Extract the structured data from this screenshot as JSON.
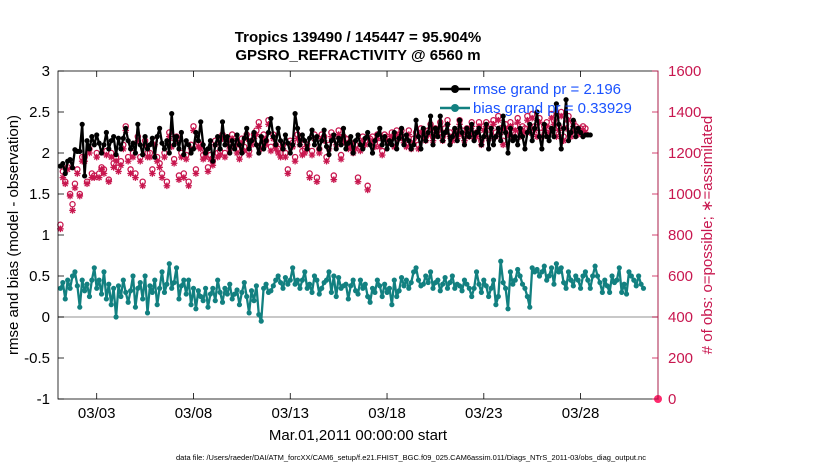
{
  "chart_data": {
    "type": "line",
    "title_line1": "Tropics 139490 / 145447 = 95.904%",
    "title_line2": "GPSRO_REFRACTIVITY @ 6560 m",
    "ylabel_left": "rmse and bias (model - observation)",
    "ylabel_right": "# of obs: o=possible; ∗=assimilated",
    "xlabel": "Mar.01,2011 00:00:00 start",
    "footnote": "data file: /Users/raeder/DAI/ATM_forcXX/CAM6_setup/f.e21.FHIST_BGC.f09_025.CAM6assim.011/Diags_NTrS_2011-03/obs_diag_output.nc",
    "xlim": [
      0,
      31
    ],
    "ylim_left": [
      -1,
      3
    ],
    "ylim_right": [
      0,
      1600
    ],
    "x_ticks": [
      2,
      7,
      12,
      17,
      22,
      27
    ],
    "x_tick_labels": [
      "03/03",
      "03/08",
      "03/13",
      "03/18",
      "03/23",
      "03/28"
    ],
    "y_left_ticks": [
      -1,
      -0.5,
      0,
      0.5,
      1,
      1.5,
      2,
      2.5,
      3
    ],
    "y_left_tick_labels": [
      "-1",
      "-0.5",
      "0",
      "0.5",
      "1",
      "1.5",
      "2",
      "2.5",
      "3"
    ],
    "y_right_ticks": [
      0,
      200,
      400,
      600,
      800,
      1000,
      1200,
      1400,
      1600
    ],
    "y_right_tick_labels": [
      "0",
      "200",
      "400",
      "600",
      "800",
      "1000",
      "1200",
      "1400",
      "1600"
    ],
    "x_step_days": 0.125,
    "x_start": 0.125,
    "legend": [
      {
        "name": "rmse grand pr = 2.196",
        "color": "#000000"
      },
      {
        "name": "bias grand pr = 0.33929",
        "color": "#128080"
      }
    ],
    "series": [
      {
        "name": "rmse",
        "color": "#000000",
        "axis": "left",
        "values": [
          1.84,
          1.87,
          1.75,
          1.9,
          1.92,
          1.82,
          2.04,
          2.02,
          2.02,
          2.35,
          1.72,
          2.15,
          2.05,
          2.2,
          2.1,
          2.22,
          2.12,
          2.0,
          2.1,
          2.25,
          2.05,
          2.15,
          2.2,
          1.98,
          2.18,
          2.05,
          2.18,
          2.3,
          2.15,
          2.05,
          2.12,
          2.0,
          2.35,
          2.1,
          1.98,
          2.2,
          2.05,
          2.1,
          2.18,
          1.95,
          2.2,
          2.3,
          2.12,
          2.05,
          2.15,
          2.0,
          2.48,
          2.1,
          2.2,
          2.05,
          2.25,
          1.98,
          2.15,
          2.1,
          2.0,
          2.05,
          2.25,
          2.15,
          2.38,
          2.1,
          2.0,
          2.05,
          2.15,
          1.9,
          2.1,
          2.2,
          2.05,
          2.38,
          2.1,
          2.2,
          2.0,
          2.15,
          2.05,
          2.22,
          2.1,
          2.0,
          2.18,
          2.3,
          2.05,
          2.15,
          2.25,
          2.1,
          2.0,
          2.2,
          2.05,
          2.15,
          2.25,
          2.42,
          2.2,
          2.1,
          2.3,
          2.15,
          2.05,
          2.22,
          2.12,
          2.0,
          2.1,
          2.48,
          2.3,
          2.1,
          2.22,
          2.15,
          2.05,
          2.18,
          2.28,
          2.1,
          2.2,
          2.05,
          2.15,
          2.28,
          2.08,
          1.98,
          2.15,
          2.22,
          2.05,
          2.18,
          2.1,
          2.3,
          2.05,
          2.12,
          2.2,
          2.0,
          2.15,
          2.22,
          2.1,
          2.05,
          2.18,
          2.25,
          2.1,
          2.0,
          2.15,
          2.22,
          2.3,
          2.1,
          2.2,
          2.05,
          2.15,
          2.1,
          2.25,
          2.05,
          2.18,
          2.3,
          2.1,
          2.22,
          2.15,
          2.05,
          2.1,
          2.4,
          2.2,
          2.05,
          2.3,
          2.15,
          2.25,
          2.45,
          2.1,
          2.3,
          2.2,
          2.45,
          2.15,
          2.25,
          2.35,
          2.1,
          2.2,
          2.3,
          2.15,
          2.4,
          2.25,
          2.1,
          2.3,
          2.2,
          2.35,
          2.15,
          2.25,
          2.3,
          2.1,
          2.2,
          2.35,
          2.05,
          2.3,
          2.1,
          2.2,
          2.3,
          2.15,
          2.45,
          2.25,
          2.0,
          2.3,
          2.15,
          2.2,
          2.1,
          2.3,
          2.2,
          2.05,
          2.25,
          2.35,
          2.15,
          2.3,
          2.5,
          2.2,
          2.05,
          2.35,
          2.2,
          2.15,
          2.3,
          2.2,
          2.6,
          2.35,
          2.05,
          2.3,
          2.65,
          2.15,
          2.25,
          2.4,
          2.2,
          2.3,
          2.25,
          2.2,
          2.22,
          2.22,
          2.22
        ]
      },
      {
        "name": "bias",
        "color": "#128080",
        "axis": "left",
        "values": [
          0.35,
          0.42,
          0.22,
          0.45,
          0.35,
          0.5,
          0.55,
          0.38,
          0.12,
          0.45,
          0.32,
          0.4,
          0.25,
          0.45,
          0.6,
          0.35,
          0.45,
          0.28,
          0.55,
          0.22,
          0.4,
          0.15,
          0.35,
          0.0,
          0.38,
          0.25,
          0.45,
          0.3,
          0.18,
          0.32,
          0.5,
          0.12,
          0.35,
          0.42,
          0.22,
          0.5,
          0.05,
          0.38,
          0.3,
          0.45,
          0.15,
          0.35,
          0.55,
          0.3,
          0.4,
          0.65,
          0.35,
          0.42,
          0.6,
          0.22,
          0.38,
          0.45,
          0.28,
          0.45,
          0.15,
          0.35,
          0.1,
          0.32,
          0.25,
          0.2,
          0.35,
          0.12,
          0.28,
          0.35,
          0.2,
          0.45,
          0.3,
          0.18,
          0.35,
          0.28,
          0.4,
          0.22,
          0.28,
          0.33,
          0.15,
          0.3,
          0.42,
          0.25,
          0.05,
          0.32,
          0.2,
          0.38,
          0.03,
          -0.05,
          0.35,
          0.4,
          0.3,
          0.32,
          0.38,
          0.45,
          0.5,
          0.42,
          0.35,
          0.48,
          0.4,
          0.45,
          0.6,
          0.4,
          0.45,
          0.35,
          0.45,
          0.55,
          0.35,
          0.4,
          0.3,
          0.5,
          0.45,
          0.28,
          0.35,
          0.42,
          0.45,
          0.55,
          0.3,
          0.5,
          0.25,
          0.48,
          0.35,
          0.38,
          0.4,
          0.22,
          0.38,
          0.45,
          0.32,
          0.28,
          0.45,
          0.35,
          0.4,
          0.25,
          0.18,
          0.35,
          0.3,
          0.45,
          0.38,
          0.25,
          0.4,
          0.3,
          0.35,
          0.15,
          0.45,
          0.25,
          0.32,
          0.48,
          0.38,
          0.45,
          0.35,
          0.42,
          0.55,
          0.6,
          0.45,
          0.38,
          0.4,
          0.5,
          0.42,
          0.55,
          0.35,
          0.42,
          0.45,
          0.32,
          0.4,
          0.48,
          0.35,
          0.42,
          0.5,
          0.35,
          0.4,
          0.38,
          0.32,
          0.45,
          0.4,
          0.35,
          0.25,
          0.35,
          0.55,
          0.4,
          0.3,
          0.45,
          0.38,
          0.25,
          0.35,
          0.45,
          0.15,
          0.25,
          0.68,
          0.42,
          0.35,
          0.1,
          0.55,
          0.4,
          0.45,
          0.58,
          0.5,
          0.4,
          0.35,
          0.25,
          0.12,
          0.6,
          0.55,
          0.58,
          0.5,
          0.55,
          0.62,
          0.45,
          0.5,
          0.6,
          0.4,
          0.65,
          0.55,
          0.6,
          0.42,
          0.35,
          0.55,
          0.45,
          0.38,
          0.5,
          0.45,
          0.35,
          0.5,
          0.55,
          0.45,
          0.35,
          0.5,
          0.62,
          0.5,
          0.42,
          0.3,
          0.45,
          0.38,
          0.3,
          0.5,
          0.42,
          0.45,
          0.6,
          0.3,
          0.4,
          0.28,
          0.55,
          0.5,
          0.45,
          0.38,
          0.5,
          0.4,
          0.35
        ]
      },
      {
        "name": "possible",
        "color": "#c8174f",
        "axis": "right",
        "values": [
          850,
          1110,
          1060,
          1130,
          1000,
          950,
          1050,
          1120,
          1000,
          1180,
          1180,
          1060,
          1220,
          1100,
          1090,
          1200,
          1100,
          1130,
          1120,
          1210,
          1070,
          1200,
          1150,
          1180,
          1130,
          1160,
          1240,
          1330,
          1180,
          1120,
          1200,
          1100,
          1280,
          1180,
          1060,
          1260,
          1200,
          1200,
          1120,
          1260,
          1180,
          1150,
          1100,
          1200,
          1060,
          1300,
          1250,
          1170,
          1280,
          1090,
          1200,
          1100,
          1190,
          1060,
          1240,
          1330,
          1120,
          1250,
          1240,
          1190,
          1200,
          1130,
          1190,
          1160,
          1260,
          1200,
          1210,
          1290,
          1200,
          1260,
          1240,
          1290,
          1250,
          1220,
          1190,
          1270,
          1230,
          1290,
          1210,
          1260,
          1290,
          1310,
          1350,
          1240,
          1290,
          1260,
          1360,
          1230,
          1290,
          1240,
          1220,
          1200,
          1240,
          1200,
          1120,
          1260,
          1250,
          1180,
          1290,
          1260,
          1210,
          1220,
          1240,
          1100,
          1210,
          1290,
          1080,
          1220,
          1290,
          1280,
          1180,
          1240,
          1300,
          1090,
          1260,
          1310,
          1190,
          1280,
          1270,
          1240,
          1250,
          1220,
          1240,
          1080,
          1230,
          1280,
          1260,
          1040,
          1270,
          1280,
          1250,
          1290,
          1250,
          1210,
          1290,
          1280,
          1270,
          1300,
          1250,
          1310,
          1290,
          1310,
          1270,
          1250,
          1310,
          1240,
          1270,
          1300,
          1240,
          1320,
          1300,
          1280,
          1310,
          1340,
          1280,
          1320,
          1310,
          1350,
          1280,
          1320,
          1360,
          1300,
          1280,
          1310,
          1290,
          1360,
          1310,
          1280,
          1320,
          1300,
          1350,
          1290,
          1300,
          1350,
          1260,
          1330,
          1350,
          1290,
          1340,
          1360,
          1300,
          1380,
          1320,
          1260,
          1340,
          1310,
          1350,
          1300,
          1330,
          1370,
          1300,
          1330,
          1320,
          1380,
          1320,
          1390,
          1330,
          1300,
          1370,
          1300,
          1330,
          1350,
          1320,
          1390,
          1360,
          1300,
          1330,
          1400,
          1280,
          1340,
          1380,
          1300,
          1350,
          1330,
          1310,
          1320,
          1330,
          1320
        ]
      },
      {
        "name": "assimilated",
        "color": "#c8174f",
        "axis": "right",
        "values": [
          830,
          1080,
          1050,
          1120,
          990,
          920,
          1030,
          1100,
          990,
          1160,
          1160,
          1050,
          1200,
          1080,
          1080,
          1180,
          1080,
          1120,
          1100,
          1190,
          1060,
          1180,
          1130,
          1160,
          1110,
          1140,
          1220,
          1310,
          1160,
          1100,
          1180,
          1080,
          1260,
          1160,
          1040,
          1240,
          1180,
          1180,
          1100,
          1240,
          1160,
          1130,
          1080,
          1180,
          1040,
          1280,
          1230,
          1150,
          1260,
          1070,
          1180,
          1080,
          1170,
          1040,
          1220,
          1310,
          1100,
          1230,
          1220,
          1170,
          1180,
          1110,
          1170,
          1140,
          1240,
          1180,
          1190,
          1270,
          1180,
          1240,
          1220,
          1270,
          1230,
          1200,
          1170,
          1250,
          1210,
          1270,
          1190,
          1240,
          1270,
          1290,
          1330,
          1220,
          1270,
          1240,
          1340,
          1210,
          1270,
          1220,
          1200,
          1180,
          1220,
          1180,
          1100,
          1240,
          1230,
          1160,
          1270,
          1240,
          1190,
          1200,
          1220,
          1080,
          1190,
          1270,
          1060,
          1200,
          1270,
          1260,
          1160,
          1220,
          1280,
          1070,
          1240,
          1290,
          1170,
          1260,
          1250,
          1220,
          1230,
          1200,
          1220,
          1060,
          1210,
          1260,
          1240,
          1020,
          1250,
          1260,
          1230,
          1270,
          1230,
          1190,
          1270,
          1260,
          1250,
          1280,
          1230,
          1290,
          1270,
          1290,
          1250,
          1230,
          1290,
          1220,
          1250,
          1280,
          1220,
          1300,
          1280,
          1260,
          1290,
          1320,
          1260,
          1300,
          1290,
          1330,
          1260,
          1300,
          1340,
          1280,
          1260,
          1290,
          1270,
          1340,
          1290,
          1260,
          1300,
          1280,
          1330,
          1270,
          1280,
          1330,
          1240,
          1310,
          1330,
          1270,
          1320,
          1340,
          1280,
          1360,
          1300,
          1240,
          1320,
          1290,
          1330,
          1280,
          1310,
          1350,
          1280,
          1310,
          1300,
          1360,
          1300,
          1370,
          1310,
          1280,
          1350,
          1280,
          1310,
          1330,
          1300,
          1370,
          1340,
          1280,
          1310,
          1380,
          1260,
          1320,
          1360,
          1280,
          1330,
          1310,
          1290,
          1300,
          1310,
          1300
        ]
      }
    ]
  }
}
